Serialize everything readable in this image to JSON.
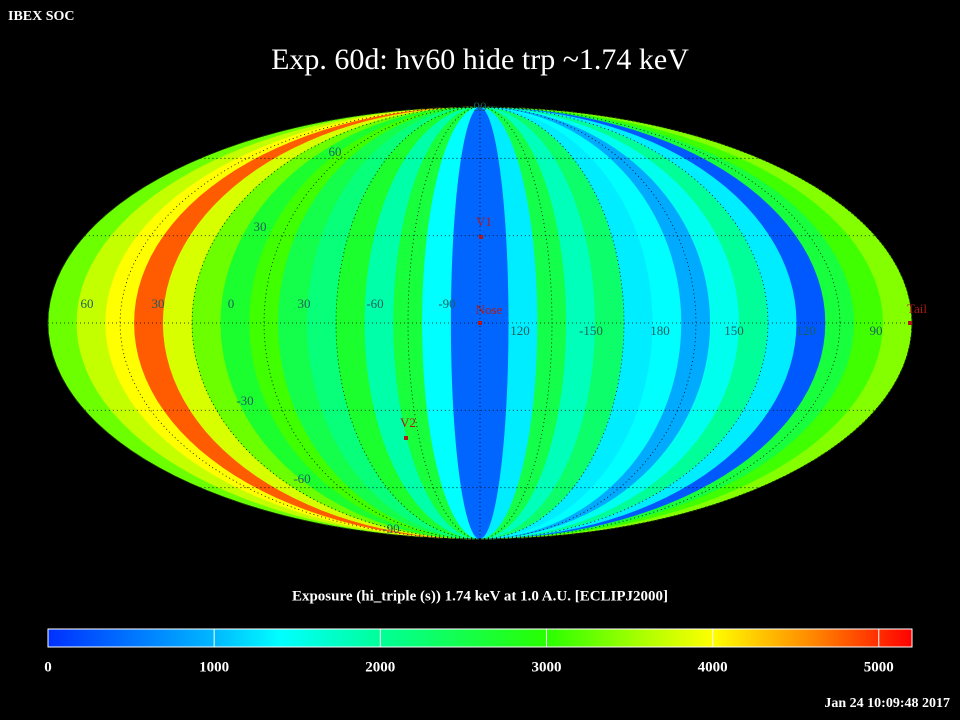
{
  "header": {
    "source": "IBEX SOC",
    "title": "Exp.   60d: hv60 hide trp ~1.74 keV",
    "timestamp": "Jan 24 10:09:48 2017"
  },
  "map": {
    "bands": [
      3300,
      3700,
      4000,
      4800,
      3800,
      3300,
      2700,
      3100,
      2500,
      2200,
      2700,
      1900,
      2600,
      1400,
      400,
      400,
      1300,
      2500,
      1800,
      2300,
      1300,
      1400,
      900,
      1500,
      2000,
      1300,
      300,
      2600,
      3100,
      3400
    ],
    "longitude_labels": [
      "60",
      "30",
      "0",
      "30",
      "-60",
      "-90",
      "120",
      "-150",
      "180",
      "150",
      "120",
      "90"
    ],
    "latitude_labels": [
      "90",
      "60",
      "30",
      "-30",
      "-60",
      "-90"
    ],
    "markers": [
      "V1",
      "Nose",
      "V2",
      "Tail"
    ]
  },
  "colorbar": {
    "title": "Exposure (hi_triple (s))  1.74 keV at 1.0 A.U. [ECLIPJ2000]",
    "range": [
      0,
      5200
    ],
    "ticks": [
      0,
      1000,
      2000,
      3000,
      4000,
      5000
    ],
    "colormap": [
      [
        0,
        "#0030ff"
      ],
      [
        1000,
        "#00b8ff"
      ],
      [
        1400,
        "#00ffff"
      ],
      [
        2000,
        "#00ff98"
      ],
      [
        3000,
        "#28ff00"
      ],
      [
        3600,
        "#b0ff00"
      ],
      [
        4000,
        "#ffff00"
      ],
      [
        4600,
        "#ff8800"
      ],
      [
        5200,
        "#ff0000"
      ]
    ]
  }
}
